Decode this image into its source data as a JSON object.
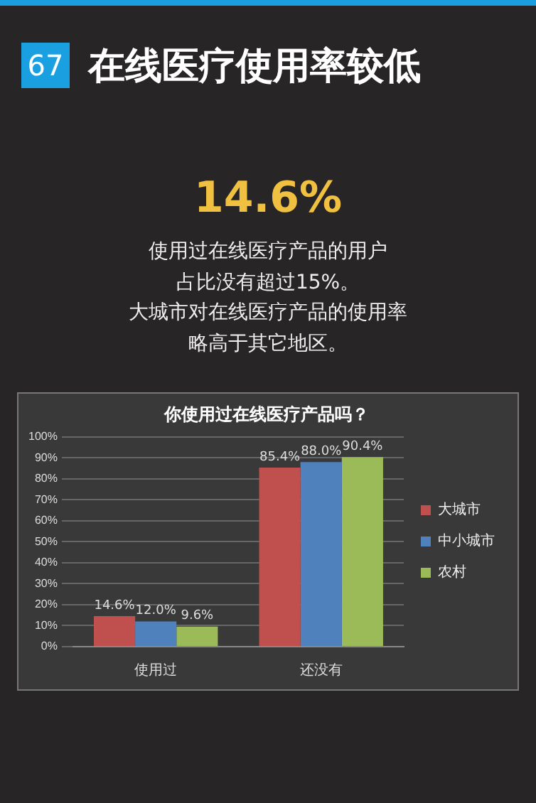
{
  "chart_data": {
    "type": "bar",
    "title": "你使用过在线医疗产品吗？",
    "annotations": [
      "67",
      "在线医疗使用率较低",
      "14.6%",
      "使用过在线医疗产品的用户",
      "占比没有超过15%。",
      "大城市对在线医疗产品的使用率",
      "略高于其它地区。"
    ],
    "categories": [
      "使用过",
      "还没有"
    ],
    "series": [
      {
        "name": "大城市",
        "color": "#c0504d",
        "values": [
          14.6,
          85.4
        ],
        "value_labels": [
          "14.6%",
          "85.4%"
        ]
      },
      {
        "name": "中小城市",
        "color": "#4f81bd",
        "values": [
          12.0,
          88.0
        ],
        "value_labels": [
          "12.0%",
          "88.0%"
        ]
      },
      {
        "name": "农村",
        "color": "#9bbb59",
        "values": [
          9.6,
          90.4
        ],
        "value_labels": [
          "9.6%",
          "90.4%"
        ]
      }
    ],
    "ylim": [
      0,
      100
    ],
    "yticks": [
      {
        "value": 0,
        "label": "0%"
      },
      {
        "value": 10,
        "label": "10%"
      },
      {
        "value": 20,
        "label": "20%"
      },
      {
        "value": 30,
        "label": "30%"
      },
      {
        "value": 40,
        "label": "40%"
      },
      {
        "value": 50,
        "label": "50%"
      },
      {
        "value": 60,
        "label": "60%"
      },
      {
        "value": 70,
        "label": "70%"
      },
      {
        "value": 80,
        "label": "80%"
      },
      {
        "value": 90,
        "label": "90%"
      },
      {
        "value": 100,
        "label": "100%"
      }
    ],
    "grid": "y",
    "legend": "right"
  }
}
